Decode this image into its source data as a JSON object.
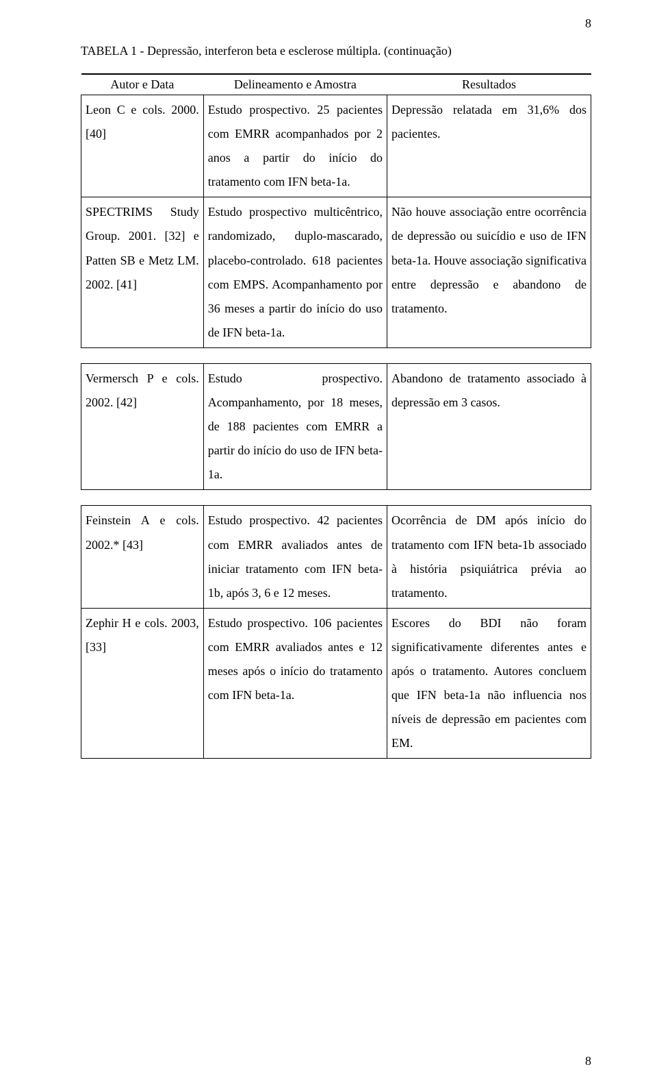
{
  "page_number_top": "8",
  "page_number_bottom": "8",
  "title": "TABELA 1 - Depressão, interferon beta e esclerose múltipla. (continuação)",
  "columns": {
    "col1": "Autor e Data",
    "col2": "Delineamento e Amostra",
    "col3": "Resultados"
  },
  "rows": {
    "r1": {
      "author": "Leon C e cols. 2000. [40]",
      "design": "Estudo prospectivo. 25 pacientes com EMRR acompanhados por 2 anos a partir do início do tratamento com IFN beta-1a.",
      "result": "Depressão relatada em 31,6% dos pacientes."
    },
    "r2": {
      "author": "SPECTRIMS Study Group. 2001. [32] e Patten SB e Metz LM. 2002. [41]",
      "design": "Estudo prospectivo multicêntrico, randomizado, duplo-mascarado, placebo-controlado. 618 pacientes com EMPS. Acompanhamento por 36 meses a partir do início do uso de IFN beta-1a.",
      "result": "Não houve associação entre ocorrência de depressão ou suicídio e uso de IFN beta-1a. Houve associação significativa entre depressão e abandono de tratamento."
    },
    "r3": {
      "author": "Vermersch P e cols. 2002. [42]",
      "design": "Estudo prospectivo. Acompanhamento, por 18 meses, de 188 pacientes com EMRR a partir do início do uso de IFN beta-1a.",
      "result": "Abandono de tratamento associado à depressão em 3 casos."
    },
    "r4": {
      "author": "Feinstein A e cols. 2002.* [43]",
      "design": "Estudo prospectivo. 42 pacientes com EMRR avaliados antes de iniciar tratamento com IFN beta-1b, após 3, 6 e 12 meses.",
      "result": "Ocorrência de DM após início do tratamento com IFN beta-1b associado à história psiquiátrica prévia ao tratamento."
    },
    "r5": {
      "author": "Zephir H e cols. 2003, [33]",
      "design": "Estudo prospectivo. 106 pacientes com EMRR avaliados antes e 12 meses após o início do tratamento com IFN beta-1a.",
      "result": "Escores do BDI não foram significativamente diferentes antes e após o tratamento. Autores concluem que IFN beta-1a não influencia nos níveis de depressão em pacientes com EM."
    }
  }
}
